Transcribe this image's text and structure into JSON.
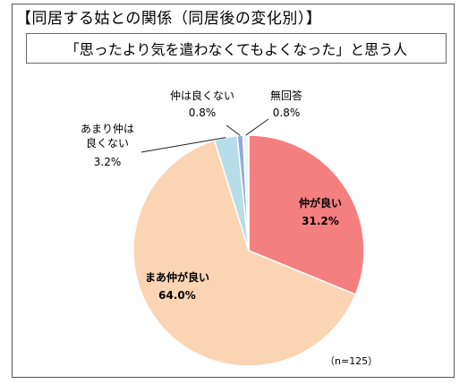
{
  "header": {
    "title": "【同居する姑との関係（同居後の変化別）】",
    "subtitle": "「思ったより気を遣わなくてもよくなった」と思う人"
  },
  "chart_data": {
    "type": "pie",
    "slices": [
      {
        "label": "仲が良い",
        "value": 31.2,
        "value_text": "31.2%",
        "color": "#f47f7f"
      },
      {
        "label": "まあ仲が良い",
        "value": 64.0,
        "value_text": "64.0%",
        "color": "#fbd4b4"
      },
      {
        "label_lines": [
          "あまり仲は",
          "良くない"
        ],
        "value": 3.2,
        "value_text": "3.2%",
        "color": "#b7dde8"
      },
      {
        "label": "仲は良くない",
        "value": 0.8,
        "value_text": "0.8%",
        "color": "#8eaadb"
      },
      {
        "label": "無回答",
        "value": 0.8,
        "value_text": "0.8%",
        "color": "#f2f2f2"
      }
    ],
    "note": "（n=125）"
  }
}
